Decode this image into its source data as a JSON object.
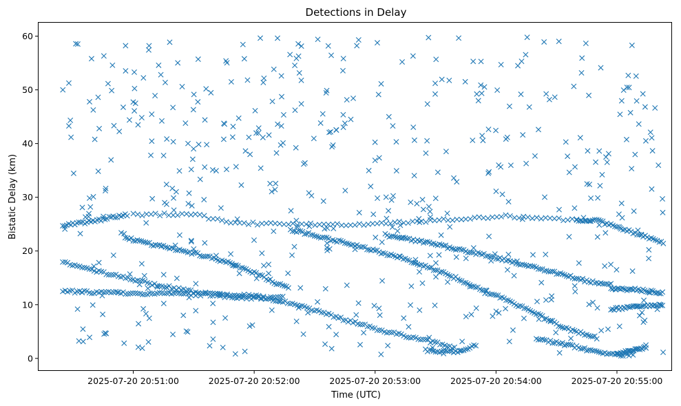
{
  "chart_data": {
    "type": "scatter",
    "title": "Detections in Delay",
    "xlabel": "Time (UTC)",
    "ylabel": "Bistatic Delay (km)",
    "xlim": [
      "2025-07-20 20:50:13",
      "2025-07-20 20:55:27"
    ],
    "ylim": [
      -2.2,
      62.5
    ],
    "x_ticks": [
      "2025-07-20 20:51:00",
      "2025-07-20 20:52:00",
      "2025-07-20 20:53:00",
      "2025-07-20 20:54:00",
      "2025-07-20 20:55:00"
    ],
    "y_ticks": [
      0,
      10,
      20,
      30,
      40,
      50,
      60
    ],
    "grid": false,
    "marker": "x",
    "color": "#1f77b4",
    "x_start": "2025-07-20 20:50:25",
    "x_end": "2025-07-20 20:55:23",
    "tracks": [
      {
        "t": [
          "20:50:25",
          "20:51:00",
          "20:51:35",
          "20:52:00",
          "20:52:20",
          "20:52:45",
          "20:53:05",
          "20:53:20",
          "20:53:40"
        ],
        "y": [
          12.5,
          12.1,
          11.9,
          11.7,
          10.2,
          7.2,
          5.0,
          3.8,
          2.0
        ],
        "step_s": 1.2
      },
      {
        "t": [
          "20:53:25",
          "20:53:40",
          "20:53:50"
        ],
        "y": [
          1.5,
          1.1,
          2.4
        ],
        "step_s": 1.0
      },
      {
        "t": [
          "20:50:25",
          "20:50:45",
          "20:51:05",
          "20:51:30",
          "20:51:50",
          "20:52:08",
          "20:52:15"
        ],
        "y": [
          18.0,
          16.0,
          14.2,
          12.4,
          11.3,
          11.3,
          11.6
        ],
        "step_s": 1.2
      },
      {
        "t": [
          "20:50:25",
          "20:50:40",
          "20:50:50",
          "20:50:57"
        ],
        "y": [
          24.8,
          25.5,
          26.3,
          26.7
        ],
        "step_s": 1.0
      },
      {
        "t": [
          "20:51:00",
          "20:51:30",
          "20:51:50",
          "20:52:20",
          "20:52:55",
          "20:53:25",
          "20:53:45",
          "20:54:05",
          "20:54:35",
          "20:54:48"
        ],
        "y": [
          26.8,
          26.8,
          25.2,
          24.9,
          25.0,
          25.6,
          26.0,
          26.5,
          25.9,
          25.6
        ],
        "step_s": 2.2
      },
      {
        "t": [
          "20:50:56",
          "20:51:10",
          "20:51:30",
          "20:51:50",
          "20:52:00",
          "20:52:10",
          "20:52:17"
        ],
        "y": [
          22.5,
          21.2,
          19.6,
          17.5,
          15.9,
          14.2,
          13.0
        ],
        "step_s": 1.0
      },
      {
        "t": [
          "20:52:18",
          "20:52:45",
          "20:53:15",
          "20:53:35",
          "20:53:55",
          "20:54:15",
          "20:54:35",
          "20:54:50"
        ],
        "y": [
          24.0,
          21.5,
          18.5,
          15.8,
          12.5,
          9.2,
          5.5,
          3.8
        ],
        "step_s": 1.0
      },
      {
        "t": [
          "20:53:05",
          "20:53:25",
          "20:53:45",
          "20:54:05",
          "20:54:25",
          "20:54:45",
          "20:54:57"
        ],
        "y": [
          23.0,
          21.6,
          20.0,
          18.3,
          16.4,
          14.4,
          13.8
        ],
        "step_s": 1.0
      },
      {
        "t": [
          "20:54:40",
          "20:54:50",
          "20:55:10",
          "20:55:23"
        ],
        "y": [
          25.8,
          25.7,
          23.2,
          21.4
        ],
        "step_s": 1.0
      },
      {
        "t": [
          "20:54:20",
          "20:54:30",
          "20:54:50",
          "20:55:00",
          "20:55:08"
        ],
        "y": [
          3.5,
          3.0,
          1.2,
          0.7,
          0.7
        ],
        "step_s": 1.0
      },
      {
        "t": [
          "20:55:00",
          "20:55:05",
          "20:55:10",
          "20:55:15"
        ],
        "y": [
          1.0,
          1.2,
          1.6,
          2.1
        ],
        "step_s": 0.6
      },
      {
        "t": [
          "20:54:57",
          "20:55:10",
          "20:55:23"
        ],
        "y": [
          9.2,
          9.6,
          10.0
        ],
        "step_s": 0.8
      },
      {
        "t": [
          "20:54:57",
          "20:55:10",
          "20:55:23"
        ],
        "y": [
          13.0,
          12.8,
          12.2
        ],
        "step_s": 0.8
      }
    ],
    "noise_count": 540
  }
}
